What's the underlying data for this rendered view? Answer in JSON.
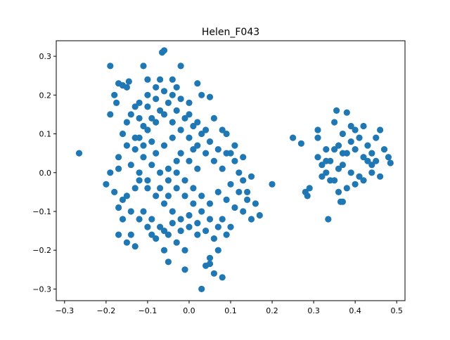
{
  "chart_data": {
    "type": "scatter",
    "title": "Helen_F043",
    "xlabel": "",
    "ylabel": "",
    "xlim": [
      -0.32,
      0.52
    ],
    "ylim": [
      -0.33,
      0.34
    ],
    "x_ticks": [
      -0.3,
      -0.2,
      -0.1,
      0.0,
      0.1,
      0.2,
      0.3,
      0.4,
      0.5
    ],
    "x_tick_labels": [
      "−0.3",
      "−0.2",
      "−0.1",
      "0.0",
      "0.1",
      "0.2",
      "0.3",
      "0.4",
      "0.5"
    ],
    "y_ticks": [
      -0.3,
      -0.2,
      -0.1,
      0.0,
      0.1,
      0.2,
      0.3
    ],
    "y_tick_labels": [
      "−0.3",
      "−0.2",
      "−0.1",
      "0.0",
      "0.1",
      "0.2",
      "0.3"
    ],
    "grid": false,
    "marker_color": "#1f77b4",
    "series": [
      {
        "points": [
          [
            -0.265,
            0.05
          ],
          [
            -0.19,
            0.275
          ],
          [
            -0.19,
            0.15
          ],
          [
            -0.18,
            0.2
          ],
          [
            -0.175,
            0.18
          ],
          [
            -0.17,
            0.23
          ],
          [
            -0.16,
            0.225
          ],
          [
            -0.15,
            0.22
          ],
          [
            -0.145,
            0.235
          ],
          [
            -0.11,
            0.275
          ],
          [
            -0.1,
            0.24
          ],
          [
            -0.07,
            0.24
          ],
          [
            -0.065,
            0.31
          ],
          [
            -0.06,
            0.315
          ],
          [
            -0.04,
            0.24
          ],
          [
            -0.02,
            0.275
          ],
          [
            0.02,
            0.23
          ],
          [
            0.03,
            0.2
          ],
          [
            0.05,
            0.195
          ],
          [
            0.06,
            0.14
          ],
          [
            0.08,
            0.11
          ],
          [
            0.09,
            0.1
          ],
          [
            0.1,
            0.05
          ],
          [
            0.11,
            0.03
          ],
          [
            0.12,
            0.0
          ],
          [
            0.13,
            -0.02
          ],
          [
            0.15,
            -0.01
          ],
          [
            0.14,
            -0.05
          ],
          [
            0.16,
            -0.08
          ],
          [
            0.17,
            -0.11
          ],
          [
            0.15,
            -0.12
          ],
          [
            0.13,
            -0.1
          ],
          [
            0.2,
            -0.03
          ],
          [
            0.1,
            -0.14
          ],
          [
            0.09,
            -0.16
          ],
          [
            0.07,
            -0.2
          ],
          [
            0.05,
            -0.22
          ],
          [
            0.04,
            -0.24
          ],
          [
            0.06,
            -0.26
          ],
          [
            0.03,
            -0.3
          ],
          [
            0.08,
            -0.27
          ],
          [
            0.05,
            -0.235
          ],
          [
            -0.05,
            -0.23
          ],
          [
            -0.01,
            -0.25
          ],
          [
            -0.06,
            -0.2
          ],
          [
            -0.09,
            -0.16
          ],
          [
            -0.13,
            -0.19
          ],
          [
            -0.14,
            -0.16
          ],
          [
            -0.17,
            -0.16
          ],
          [
            -0.15,
            -0.18
          ],
          [
            -0.2,
            -0.03
          ],
          [
            -0.19,
            0.0
          ],
          [
            -0.18,
            -0.05
          ],
          [
            -0.17,
            -0.09
          ],
          [
            -0.16,
            -0.07
          ],
          [
            -0.17,
            0.04
          ],
          [
            -0.16,
            0.1
          ],
          [
            -0.15,
            0.13
          ],
          [
            -0.14,
            0.15
          ],
          [
            -0.13,
            0.17
          ],
          [
            -0.12,
            0.18
          ],
          [
            -0.1,
            0.2
          ],
          [
            -0.08,
            0.19
          ],
          [
            -0.06,
            0.21
          ],
          [
            -0.04,
            0.2
          ],
          [
            -0.02,
            0.19
          ],
          [
            0.0,
            0.15
          ],
          [
            0.02,
            0.13
          ],
          [
            0.04,
            0.11
          ],
          [
            -0.12,
            0.09
          ],
          [
            -0.1,
            0.11
          ],
          [
            -0.08,
            0.13
          ],
          [
            -0.06,
            0.15
          ],
          [
            -0.04,
            0.13
          ],
          [
            -0.02,
            0.11
          ],
          [
            0.0,
            0.09
          ],
          [
            0.02,
            0.07
          ],
          [
            0.04,
            0.05
          ],
          [
            0.06,
            0.03
          ],
          [
            0.08,
            0.01
          ],
          [
            -0.13,
            0.06
          ],
          [
            -0.11,
            0.04
          ],
          [
            -0.09,
            0.02
          ],
          [
            -0.07,
            0.0
          ],
          [
            -0.05,
            -0.02
          ],
          [
            -0.03,
            -0.04
          ],
          [
            -0.01,
            -0.06
          ],
          [
            0.01,
            -0.08
          ],
          [
            0.03,
            -0.1
          ],
          [
            0.05,
            -0.12
          ],
          [
            0.07,
            -0.14
          ],
          [
            -0.12,
            -0.02
          ],
          [
            -0.1,
            -0.04
          ],
          [
            -0.08,
            -0.06
          ],
          [
            -0.06,
            -0.08
          ],
          [
            -0.04,
            -0.1
          ],
          [
            -0.02,
            -0.12
          ],
          [
            0.0,
            -0.14
          ],
          [
            0.02,
            -0.16
          ],
          [
            -0.11,
            -0.1
          ],
          [
            -0.09,
            -0.12
          ],
          [
            -0.07,
            -0.14
          ],
          [
            -0.05,
            -0.16
          ],
          [
            -0.03,
            -0.18
          ],
          [
            -0.01,
            -0.2
          ],
          [
            -0.14,
            0.02
          ],
          [
            -0.12,
            0.0
          ],
          [
            -0.1,
            -0.02
          ],
          [
            -0.08,
            0.05
          ],
          [
            -0.06,
            0.07
          ],
          [
            -0.04,
            0.09
          ],
          [
            -0.02,
            0.05
          ],
          [
            0.0,
            0.03
          ],
          [
            0.02,
            0.01
          ],
          [
            -0.07,
            -0.04
          ],
          [
            -0.05,
            -0.06
          ],
          [
            -0.03,
            0.0
          ],
          [
            -0.01,
            -0.02
          ],
          [
            0.01,
            -0.04
          ],
          [
            0.03,
            -0.06
          ],
          [
            0.05,
            -0.08
          ],
          [
            0.07,
            -0.05
          ],
          [
            0.09,
            -0.07
          ],
          [
            0.11,
            -0.09
          ],
          [
            -0.15,
            0.07
          ],
          [
            -0.13,
            0.09
          ],
          [
            -0.11,
            0.12
          ],
          [
            -0.09,
            0.14
          ],
          [
            -0.07,
            0.16
          ],
          [
            -0.05,
            0.18
          ],
          [
            -0.03,
            0.16
          ],
          [
            -0.01,
            0.14
          ],
          [
            0.01,
            0.12
          ],
          [
            0.03,
            0.1
          ],
          [
            0.05,
            0.08
          ],
          [
            0.07,
            0.06
          ],
          [
            -0.16,
            -0.12
          ],
          [
            -0.14,
            -0.1
          ],
          [
            -0.12,
            -0.12
          ],
          [
            -0.1,
            -0.14
          ],
          [
            -0.08,
            -0.17
          ],
          [
            -0.06,
            -0.15
          ],
          [
            -0.04,
            -0.13
          ],
          [
            -0.02,
            -0.15
          ],
          [
            0.0,
            -0.11
          ],
          [
            0.02,
            -0.13
          ],
          [
            0.04,
            -0.15
          ],
          [
            0.06,
            -0.17
          ],
          [
            0.08,
            -0.12
          ],
          [
            -0.03,
            0.03
          ],
          [
            -0.05,
            0.01
          ],
          [
            0.01,
            0.06
          ],
          [
            -0.09,
            0.08
          ],
          [
            -0.11,
            0.07
          ],
          [
            -0.13,
            -0.04
          ],
          [
            -0.15,
            -0.06
          ],
          [
            -0.17,
            0.01
          ],
          [
            0.1,
            -0.03
          ],
          [
            0.12,
            -0.05
          ],
          [
            0.14,
            -0.07
          ],
          [
            0.11,
            0.07
          ],
          [
            0.13,
            0.04
          ],
          [
            0.09,
            0.05
          ],
          [
            -0.08,
            0.22
          ],
          [
            -0.1,
            0.17
          ],
          [
            -0.12,
            0.14
          ],
          [
            -0.03,
            0.22
          ],
          [
            0.0,
            0.18
          ],
          [
            0.25,
            0.09
          ],
          [
            0.27,
            0.075
          ],
          [
            0.28,
            -0.05
          ],
          [
            0.285,
            -0.06
          ],
          [
            0.29,
            -0.04
          ],
          [
            0.31,
            0.11
          ],
          [
            0.31,
            0.09
          ],
          [
            0.33,
            0.06
          ],
          [
            0.32,
            0.02
          ],
          [
            0.335,
            -0.12
          ],
          [
            0.34,
            -0.02
          ],
          [
            0.35,
            0.13
          ],
          [
            0.355,
            0.16
          ],
          [
            0.36,
            0.07
          ],
          [
            0.37,
            0.1
          ],
          [
            0.38,
            0.155
          ],
          [
            0.39,
            0.12
          ],
          [
            0.4,
            0.11
          ],
          [
            0.41,
            0.09
          ],
          [
            0.42,
            0.12
          ],
          [
            0.43,
            0.07
          ],
          [
            0.44,
            0.05
          ],
          [
            0.45,
            0.09
          ],
          [
            0.46,
            0.11
          ],
          [
            0.47,
            0.06
          ],
          [
            0.48,
            0.04
          ],
          [
            0.485,
            0.025
          ],
          [
            0.46,
            -0.01
          ],
          [
            0.44,
            0.0
          ],
          [
            0.42,
            -0.02
          ],
          [
            0.4,
            -0.03
          ],
          [
            0.38,
            -0.04
          ],
          [
            0.36,
            -0.05
          ],
          [
            0.365,
            -0.075
          ],
          [
            0.37,
            -0.075
          ],
          [
            0.35,
            -0.02
          ],
          [
            0.33,
            0.0
          ],
          [
            0.31,
            0.04
          ],
          [
            0.32,
            -0.01
          ],
          [
            0.34,
            0.03
          ],
          [
            0.36,
            0.01
          ],
          [
            0.38,
            0.05
          ],
          [
            0.4,
            0.06
          ],
          [
            0.42,
            0.04
          ],
          [
            0.44,
            0.02
          ],
          [
            0.39,
            0.0
          ],
          [
            0.41,
            -0.01
          ],
          [
            0.37,
            0.02
          ],
          [
            0.35,
            0.06
          ],
          [
            0.43,
            0.03
          ],
          [
            0.45,
            0.03
          ],
          [
            0.39,
            0.08
          ],
          [
            0.37,
            0.05
          ],
          [
            0.33,
            0.03
          ]
        ]
      }
    ]
  }
}
